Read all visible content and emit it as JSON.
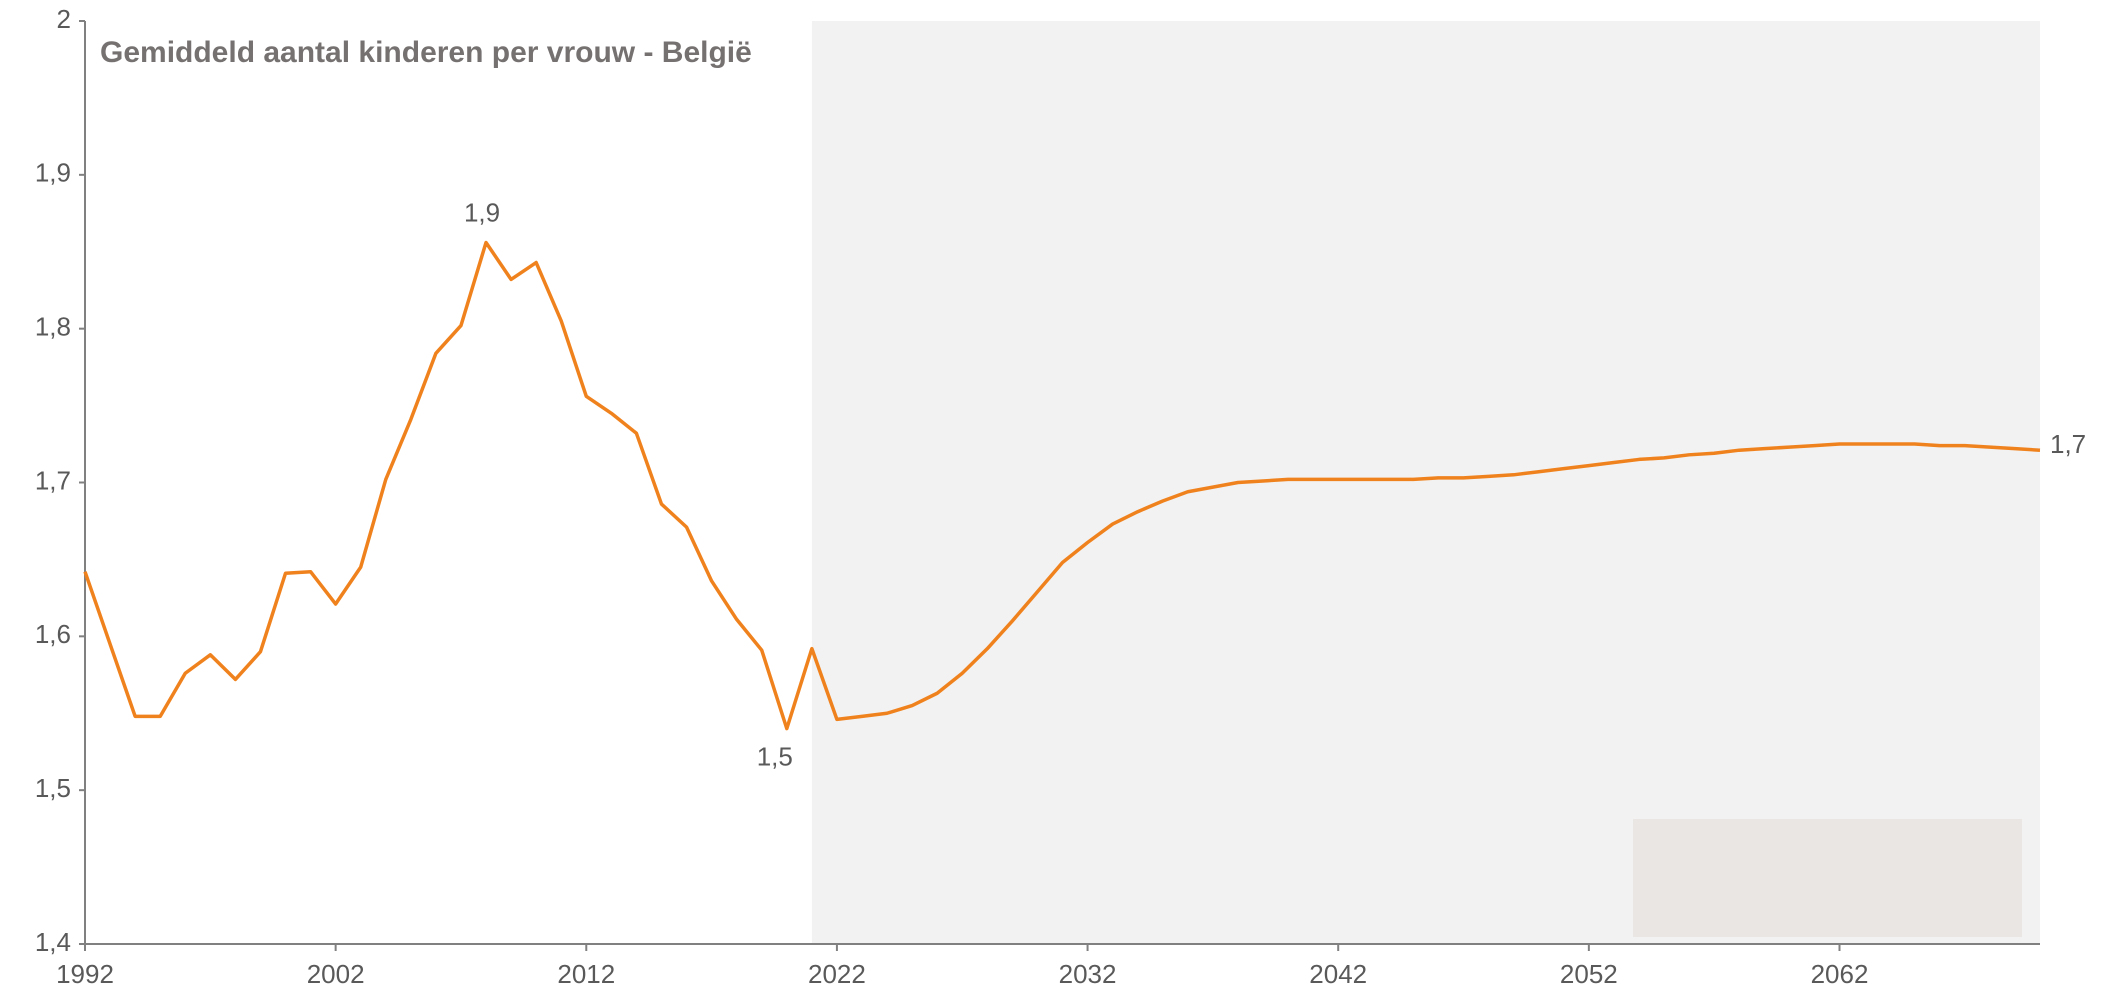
{
  "chart_data": {
    "type": "line",
    "title": "Gemiddeld aantal kinderen per vrouw - België",
    "x": [
      1992,
      1993,
      1994,
      1995,
      1996,
      1997,
      1998,
      1999,
      2000,
      2001,
      2002,
      2003,
      2004,
      2005,
      2006,
      2007,
      2008,
      2009,
      2010,
      2011,
      2012,
      2013,
      2014,
      2015,
      2016,
      2017,
      2018,
      2019,
      2020,
      2021,
      2022,
      2023,
      2024,
      2025,
      2026,
      2027,
      2028,
      2029,
      2030,
      2031,
      2032,
      2033,
      2034,
      2035,
      2036,
      2037,
      2038,
      2039,
      2040,
      2041,
      2042,
      2043,
      2044,
      2045,
      2046,
      2047,
      2048,
      2049,
      2050,
      2051,
      2052,
      2053,
      2054,
      2055,
      2056,
      2057,
      2058,
      2059,
      2060,
      2061,
      2062,
      2063,
      2064,
      2065,
      2066,
      2067,
      2068,
      2069,
      2070
    ],
    "series": [
      {
        "color": "#f0821e",
        "values": [
          1.642,
          1.595,
          1.548,
          1.548,
          1.576,
          1.588,
          1.572,
          1.59,
          1.641,
          1.642,
          1.621,
          1.645,
          1.702,
          1.741,
          1.784,
          1.802,
          1.856,
          1.832,
          1.843,
          1.805,
          1.756,
          1.745,
          1.732,
          1.686,
          1.671,
          1.636,
          1.611,
          1.591,
          1.54,
          1.592,
          1.546,
          1.548,
          1.55,
          1.555,
          1.563,
          1.576,
          1.592,
          1.61,
          1.629,
          1.648,
          1.661,
          1.673,
          1.681,
          1.688,
          1.694,
          1.697,
          1.7,
          1.701,
          1.702,
          1.702,
          1.702,
          1.702,
          1.702,
          1.702,
          1.703,
          1.703,
          1.704,
          1.705,
          1.707,
          1.709,
          1.711,
          1.713,
          1.715,
          1.716,
          1.718,
          1.719,
          1.721,
          1.722,
          1.723,
          1.724,
          1.725,
          1.725,
          1.725,
          1.725,
          1.724,
          1.724,
          1.723,
          1.722,
          1.721
        ],
        "value_labels": [
          null,
          null,
          null,
          null,
          null,
          null,
          null,
          null,
          null,
          null,
          null,
          null,
          null,
          null,
          null,
          null,
          "1,9",
          null,
          null,
          null,
          null,
          null,
          null,
          null,
          null,
          null,
          null,
          null,
          "1,5",
          null,
          null,
          null,
          null,
          null,
          null,
          null,
          null,
          null,
          null,
          null,
          null,
          null,
          null,
          null,
          null,
          null,
          null,
          null,
          null,
          null,
          null,
          null,
          null,
          null,
          null,
          null,
          null,
          null,
          null,
          null,
          null,
          null,
          null,
          null,
          null,
          null,
          null,
          null,
          null,
          null,
          null,
          null,
          null,
          null,
          null,
          null,
          null,
          null,
          "1,7"
        ]
      }
    ],
    "xlim": [
      1992,
      2070
    ],
    "xticks": [
      1992,
      2002,
      2012,
      2022,
      2032,
      2042,
      2052,
      2062
    ],
    "ylim": [
      1.4,
      2
    ],
    "yticks": [
      {
        "value": 1.4,
        "label": "1,4"
      },
      {
        "value": 1.5,
        "label": "1,5"
      },
      {
        "value": 1.6,
        "label": "1,6"
      },
      {
        "value": 1.7,
        "label": "1,7"
      },
      {
        "value": 1.8,
        "label": "1,8"
      },
      {
        "value": 1.9,
        "label": "1,9"
      },
      2
    ],
    "shade_xlim": [
      2021,
      2070
    ],
    "shade_color": "#f2f2f2",
    "grid": false
  }
}
